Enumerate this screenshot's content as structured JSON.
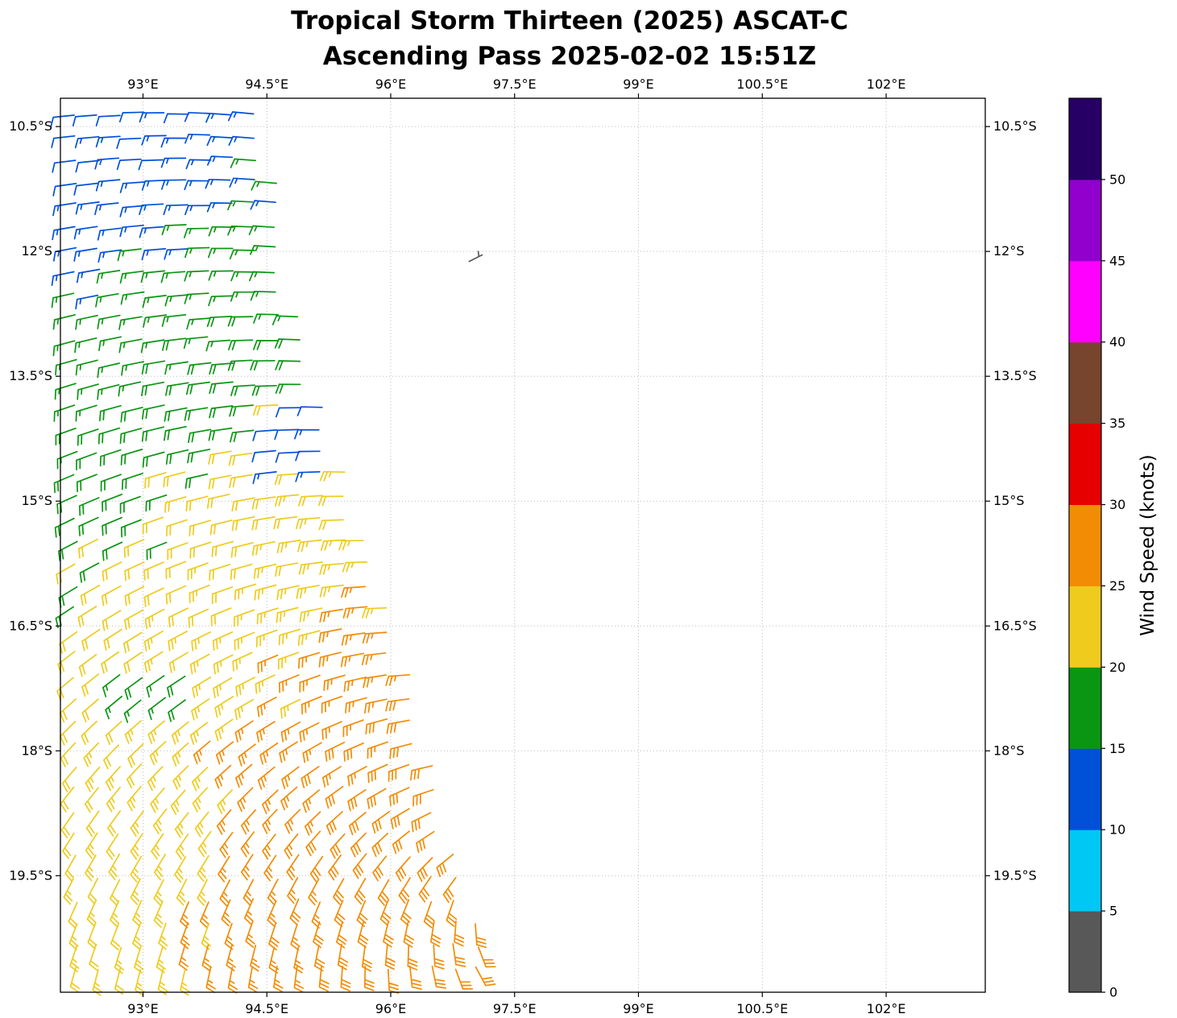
{
  "chart_data": {
    "type": "scatter",
    "subtype": "wind_barb_map",
    "title": "Tropical Storm Thirteen (2025) ASCAT-C",
    "subtitle": "Ascending Pass 2025-02-02 15:51Z",
    "grid": true,
    "xlim": [
      92.0,
      103.2
    ],
    "ylim": [
      -20.9,
      -10.16
    ],
    "x_ticks": [
      {
        "value": 93.0,
        "label": "93°E"
      },
      {
        "value": 94.5,
        "label": "94.5°E"
      },
      {
        "value": 96.0,
        "label": "96°E"
      },
      {
        "value": 97.5,
        "label": "97.5°E"
      },
      {
        "value": 99.0,
        "label": "99°E"
      },
      {
        "value": 100.5,
        "label": "100.5°E"
      },
      {
        "value": 102.0,
        "label": "102°E"
      }
    ],
    "y_ticks": [
      {
        "value": -10.5,
        "label": "10.5°S"
      },
      {
        "value": -12.0,
        "label": "12°S"
      },
      {
        "value": -13.5,
        "label": "13.5°S"
      },
      {
        "value": -15.0,
        "label": "15°S"
      },
      {
        "value": -16.5,
        "label": "16.5°S"
      },
      {
        "value": -18.0,
        "label": "18°S"
      },
      {
        "value": -19.5,
        "label": "19.5°S"
      }
    ],
    "colorbar": {
      "label": "Wind Speed (knots)",
      "ticks": [
        0,
        5,
        10,
        15,
        20,
        25,
        30,
        35,
        40,
        45,
        50
      ],
      "vmin": 0,
      "vmax": 55,
      "segments": [
        {
          "from": 0,
          "to": 5,
          "color": "#585858"
        },
        {
          "from": 5,
          "to": 10,
          "color": "#00c8f5"
        },
        {
          "from": 10,
          "to": 15,
          "color": "#0050d8"
        },
        {
          "from": 15,
          "to": 20,
          "color": "#0a9612"
        },
        {
          "from": 20,
          "to": 25,
          "color": "#eecb1d"
        },
        {
          "from": 25,
          "to": 30,
          "color": "#f28c05"
        },
        {
          "from": 30,
          "to": 35,
          "color": "#e60000"
        },
        {
          "from": 35,
          "to": 40,
          "color": "#77452d"
        },
        {
          "from": 40,
          "to": 45,
          "color": "#ff00ff"
        },
        {
          "from": 45,
          "to": 50,
          "color": "#9100cc"
        },
        {
          "from": 50,
          "to": 55,
          "color": "#270066"
        }
      ]
    },
    "wind_field": {
      "units": "knots",
      "barb_convention": "half=5kt full=10kt, southern-hemisphere pass",
      "grid_step_deg": 0.27,
      "lon_start": 92.18,
      "lat_start": -10.35,
      "lat_end": -20.85,
      "right_edge": [
        [
          -10.3,
          94.4
        ],
        [
          -11.0,
          94.62
        ],
        [
          -12.0,
          94.68
        ],
        [
          -12.5,
          94.85
        ],
        [
          -13.0,
          95.0
        ],
        [
          -13.5,
          95.12
        ],
        [
          -14.0,
          95.28
        ],
        [
          -15.0,
          95.56
        ],
        [
          -16.0,
          95.85
        ],
        [
          -16.5,
          96.05
        ],
        [
          -17.5,
          96.35
        ],
        [
          -18.0,
          96.45
        ],
        [
          -19.0,
          96.73
        ],
        [
          -19.5,
          96.88
        ],
        [
          -20.3,
          97.12
        ],
        [
          -20.9,
          97.3
        ]
      ],
      "vortex_center": [
        97.7,
        -19.7
      ],
      "rotation": "clockwise",
      "speed_base": 33,
      "speed_slope_per_deg": 2,
      "speed_min": 10.5,
      "speed_max": 29,
      "inflow_deg": 25,
      "anomalies": [
        {
          "lon_min": 94.4,
          "lon_max": 95.35,
          "lat_min": -14.65,
          "lat_max": -13.85,
          "delta": -9,
          "note": "low-speed blue patch"
        },
        {
          "lon_min": 92.5,
          "lon_max": 93.7,
          "lat_min": -17.6,
          "lat_max": -16.85,
          "delta": -5,
          "note": "green patch in yellow zone"
        }
      ]
    },
    "stray_barb": {
      "lon": 96.95,
      "lat": -12.12,
      "speed": 3,
      "dir_to": [
        -0.8,
        -0.4
      ]
    }
  }
}
